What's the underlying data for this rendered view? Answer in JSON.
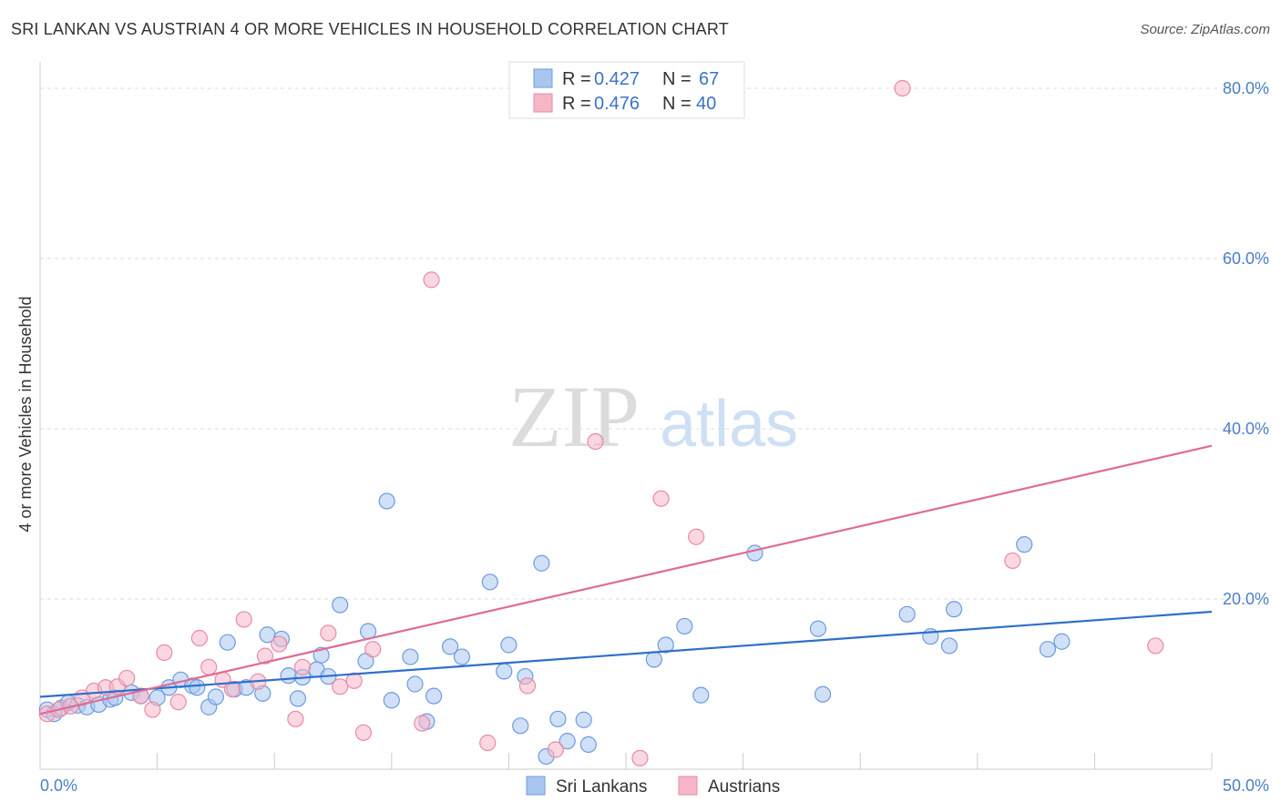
{
  "header": {
    "title": "SRI LANKAN VS AUSTRIAN 4 OR MORE VEHICLES IN HOUSEHOLD CORRELATION CHART",
    "source": "Source: ZipAtlas.com"
  },
  "watermark": {
    "zip": "ZIP",
    "atlas": "atlas"
  },
  "legend": {
    "r_label": "R = ",
    "n_label": "N = ",
    "entries": [
      {
        "r": "0.427",
        "n": "67",
        "color": "#a9c6ef"
      },
      {
        "r": "0.476",
        "n": "40",
        "color": "#f6b6c8"
      }
    ]
  },
  "colors": {
    "blue_fill": "#a9c6ef",
    "blue_stroke": "#6d9be0",
    "blue_line": "#2f6fcb",
    "pink_fill": "#f6b6c8",
    "pink_stroke": "#e88aa6",
    "pink_line": "#e06b94",
    "tick_text": "#4a7fc7",
    "grid": "#dddddd"
  },
  "chart_data": {
    "type": "scatter",
    "title": "SRI LANKAN VS AUSTRIAN 4 OR MORE VEHICLES IN HOUSEHOLD CORRELATION CHART",
    "xlabel": "",
    "ylabel": "4 or more Vehicles in Household",
    "xlim": [
      0,
      50
    ],
    "ylim": [
      0,
      80
    ],
    "x_tick_labels": [
      "0.0%",
      "50.0%"
    ],
    "y_ticks": [
      20,
      40,
      60,
      80
    ],
    "y_tick_labels": [
      "20.0%",
      "40.0%",
      "60.0%",
      "80.0%"
    ],
    "series": [
      {
        "name": "Sri Lankans",
        "r": 0.427,
        "n": 67,
        "trend": [
          [
            0,
            8.5
          ],
          [
            50,
            18.5
          ]
        ],
        "points": [
          [
            0.3,
            7.0
          ],
          [
            0.6,
            6.5
          ],
          [
            0.9,
            7.2
          ],
          [
            1.2,
            7.8
          ],
          [
            1.6,
            7.5
          ],
          [
            2.0,
            7.3
          ],
          [
            2.5,
            7.6
          ],
          [
            3.0,
            8.2
          ],
          [
            3.2,
            8.4
          ],
          [
            3.9,
            9.0
          ],
          [
            4.3,
            8.6
          ],
          [
            5.0,
            8.4
          ],
          [
            5.5,
            9.6
          ],
          [
            6.0,
            10.5
          ],
          [
            6.5,
            9.8
          ],
          [
            6.7,
            9.6
          ],
          [
            7.2,
            7.3
          ],
          [
            7.5,
            8.5
          ],
          [
            8.0,
            14.9
          ],
          [
            8.3,
            9.4
          ],
          [
            8.8,
            9.6
          ],
          [
            9.5,
            8.9
          ],
          [
            9.7,
            15.8
          ],
          [
            10.3,
            15.3
          ],
          [
            10.6,
            11.0
          ],
          [
            11.0,
            8.3
          ],
          [
            11.2,
            10.8
          ],
          [
            11.8,
            11.7
          ],
          [
            12.0,
            13.4
          ],
          [
            12.3,
            10.9
          ],
          [
            12.8,
            19.3
          ],
          [
            13.9,
            12.7
          ],
          [
            14.0,
            16.2
          ],
          [
            14.8,
            31.5
          ],
          [
            15.0,
            8.1
          ],
          [
            15.8,
            13.2
          ],
          [
            16.0,
            10.0
          ],
          [
            16.5,
            5.6
          ],
          [
            16.8,
            8.6
          ],
          [
            17.5,
            14.4
          ],
          [
            18.0,
            13.2
          ],
          [
            19.2,
            22.0
          ],
          [
            19.8,
            11.5
          ],
          [
            20.0,
            14.6
          ],
          [
            20.5,
            5.1
          ],
          [
            20.7,
            10.9
          ],
          [
            21.4,
            24.2
          ],
          [
            21.6,
            1.5
          ],
          [
            22.1,
            5.9
          ],
          [
            22.5,
            3.3
          ],
          [
            23.2,
            5.8
          ],
          [
            23.4,
            2.9
          ],
          [
            26.2,
            12.9
          ],
          [
            26.7,
            14.6
          ],
          [
            27.5,
            16.8
          ],
          [
            28.2,
            8.7
          ],
          [
            30.5,
            25.4
          ],
          [
            33.2,
            16.5
          ],
          [
            33.4,
            8.8
          ],
          [
            37.0,
            18.2
          ],
          [
            38.0,
            15.6
          ],
          [
            38.8,
            14.5
          ],
          [
            39.0,
            18.8
          ],
          [
            42.0,
            26.4
          ],
          [
            43.0,
            14.1
          ],
          [
            43.6,
            15.0
          ]
        ]
      },
      {
        "name": "Austrians",
        "r": 0.476,
        "n": 40,
        "trend": [
          [
            0,
            6.5
          ],
          [
            50,
            38.0
          ]
        ],
        "points": [
          [
            0.3,
            6.5
          ],
          [
            0.8,
            7.0
          ],
          [
            1.3,
            7.4
          ],
          [
            1.8,
            8.4
          ],
          [
            2.3,
            9.2
          ],
          [
            2.8,
            9.6
          ],
          [
            3.3,
            9.7
          ],
          [
            3.7,
            10.7
          ],
          [
            4.3,
            8.6
          ],
          [
            4.8,
            7.0
          ],
          [
            5.3,
            13.7
          ],
          [
            5.9,
            7.9
          ],
          [
            6.8,
            15.4
          ],
          [
            7.2,
            12.0
          ],
          [
            7.8,
            10.5
          ],
          [
            8.2,
            9.4
          ],
          [
            8.7,
            17.6
          ],
          [
            9.3,
            10.3
          ],
          [
            9.6,
            13.3
          ],
          [
            10.2,
            14.7
          ],
          [
            10.9,
            5.9
          ],
          [
            11.2,
            12.0
          ],
          [
            12.3,
            16.0
          ],
          [
            12.8,
            9.7
          ],
          [
            13.4,
            10.4
          ],
          [
            13.8,
            4.3
          ],
          [
            14.2,
            14.1
          ],
          [
            16.3,
            5.4
          ],
          [
            16.7,
            57.5
          ],
          [
            19.1,
            3.1
          ],
          [
            20.8,
            9.8
          ],
          [
            22.0,
            2.3
          ],
          [
            23.7,
            38.5
          ],
          [
            25.6,
            1.3
          ],
          [
            26.5,
            31.8
          ],
          [
            28.0,
            27.3
          ],
          [
            36.8,
            80.0
          ],
          [
            41.5,
            24.5
          ],
          [
            47.6,
            14.5
          ]
        ]
      }
    ]
  },
  "bottom_legend": [
    {
      "label": "Sri Lankans",
      "color": "#a9c6ef"
    },
    {
      "label": "Austrians",
      "color": "#f6b6c8"
    }
  ]
}
